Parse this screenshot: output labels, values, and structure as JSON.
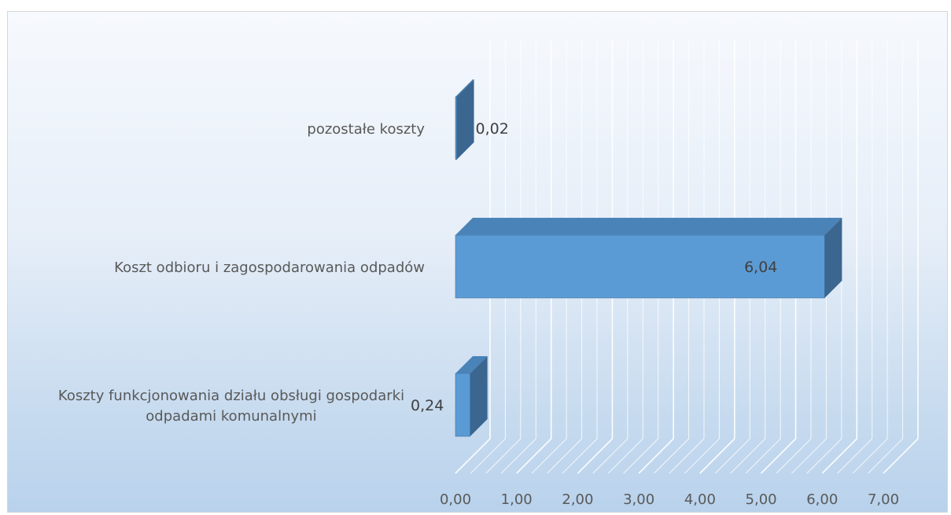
{
  "chart_data": {
    "type": "bar",
    "orientation": "horizontal",
    "style": "3d",
    "categories": [
      "Koszty funkcjonowania działu obsługi gospodarki odpadami komunalnymi",
      "Koszt odbioru i zagospodarowania odpadów",
      "pozostałe koszty"
    ],
    "category_lines": [
      [
        "Koszty funkcjonowania działu obsługi gospodarki",
        "odpadami komunalnymi"
      ],
      [
        "Koszt odbioru i zagospodarowania odpadów"
      ],
      [
        "pozostałe koszty"
      ]
    ],
    "values": [
      0.24,
      6.04,
      0.02
    ],
    "data_labels": [
      "0,24",
      "6,04",
      "0,02"
    ],
    "xlim": [
      0,
      7
    ],
    "x_ticks": [
      "0,00",
      "1,00",
      "2,00",
      "3,00",
      "4,00",
      "5,00",
      "6,00",
      "7,00"
    ],
    "grid": true,
    "legend": "none",
    "colors": {
      "bar_front": "#5b9bd5",
      "bar_top": "#4a83b8",
      "bar_side": "#3a6690",
      "grid": "#ffffff",
      "text": "#595959"
    }
  }
}
